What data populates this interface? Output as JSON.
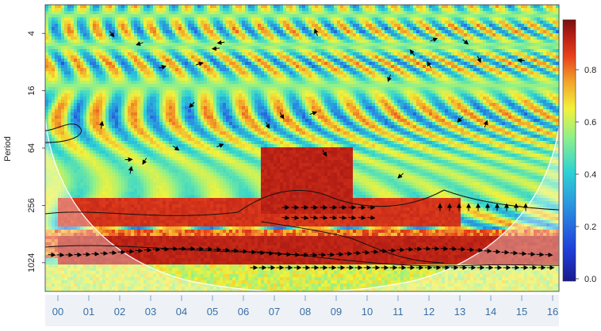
{
  "chart_data": {
    "type": "heatmap",
    "title": "",
    "xlabel": "",
    "ylabel": "Period",
    "x_ticks": [
      "00",
      "01",
      "02",
      "03",
      "04",
      "05",
      "06",
      "07",
      "08",
      "09",
      "10",
      "11",
      "12",
      "13",
      "14",
      "15",
      "16"
    ],
    "y_ticks": [
      {
        "label": "4",
        "value": 4
      },
      {
        "label": "16",
        "value": 16
      },
      {
        "label": "64",
        "value": 64
      },
      {
        "label": "256",
        "value": 256
      },
      {
        "label": "1024",
        "value": 1024
      }
    ],
    "y_scale": "log2",
    "y_range": [
      2,
      2048
    ],
    "colorbar": {
      "range": [
        0.0,
        1.0
      ],
      "ticks": [
        "0.0",
        "0.2",
        "0.4",
        "0.6",
        "0.8"
      ],
      "colors": [
        "#1a1a8c",
        "#1f3fd9",
        "#2a8fe0",
        "#2ed3d3",
        "#8ff08a",
        "#f2f23a",
        "#f2a72a",
        "#e8421e",
        "#b51e14",
        "#7a1010"
      ]
    },
    "high_power_regions": [
      {
        "description": "band",
        "x_start": 0,
        "x_end": 16.5,
        "period_low": 512,
        "period_high": 1024,
        "power": 0.9
      },
      {
        "description": "band",
        "x_start": 0,
        "x_end": 13,
        "period_low": 200,
        "period_high": 400,
        "power": 0.85
      },
      {
        "description": "blob",
        "x_start": 6.5,
        "x_end": 9.5,
        "period_low": 60,
        "period_high": 300,
        "power": 0.9
      }
    ]
  }
}
